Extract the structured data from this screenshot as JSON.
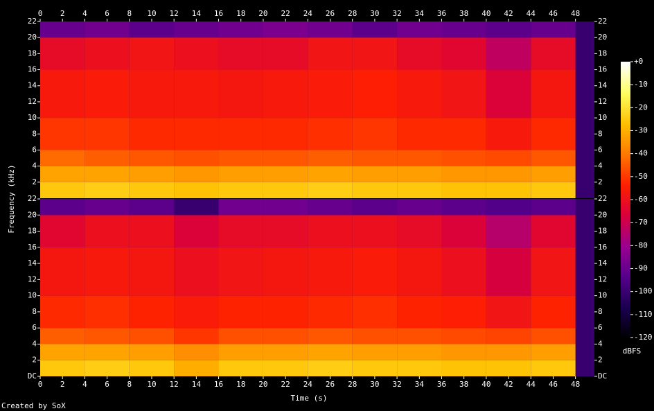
{
  "chart_data": {
    "type": "spectrogram",
    "xlabel": "Time (s)",
    "ylabel": "Frequency (kHz)",
    "footer": "Created by SoX",
    "colorbar_label": "dBFS",
    "xlim": [
      0,
      49.7
    ],
    "xticks": [
      0,
      2,
      4,
      6,
      8,
      10,
      12,
      14,
      16,
      18,
      20,
      22,
      24,
      26,
      28,
      30,
      32,
      34,
      36,
      38,
      40,
      42,
      44,
      46,
      48
    ],
    "zlim": [
      -120,
      0
    ],
    "zticks": [
      {
        "value": 0,
        "label": "+0"
      },
      -10,
      -20,
      -30,
      -40,
      -50,
      -60,
      -70,
      -80,
      -90,
      -100,
      -110,
      -120
    ],
    "colorscale": [
      "#000000",
      "#1a0050",
      "#55008c",
      "#9a0090",
      "#d8003c",
      "#ff2000",
      "#ff7800",
      "#ffc000",
      "#ffff60",
      "#ffffff"
    ],
    "time_bins": [
      0,
      4,
      8,
      12,
      16,
      20,
      24,
      28,
      32,
      36,
      40,
      44,
      48
    ],
    "freq_bins": [
      0,
      2,
      4,
      6,
      10,
      16,
      20,
      22
    ],
    "channels": [
      {
        "ylim": [
          0,
          22
        ],
        "yticks": [
          2,
          4,
          6,
          8,
          10,
          12,
          14,
          16,
          18,
          20,
          22
        ],
        "z": [
          [
            -25,
            -24,
            -25,
            -26,
            -25,
            -25,
            -24,
            -25,
            -25,
            -26,
            -26,
            -25
          ],
          [
            -32,
            -32,
            -33,
            -34,
            -33,
            -33,
            -32,
            -33,
            -33,
            -34,
            -34,
            -33
          ],
          [
            -42,
            -44,
            -45,
            -46,
            -45,
            -45,
            -44,
            -45,
            -45,
            -46,
            -47,
            -45
          ],
          [
            -50,
            -50,
            -52,
            -52,
            -52,
            -52,
            -51,
            -50,
            -52,
            -52,
            -56,
            -52
          ],
          [
            -56,
            -55,
            -56,
            -56,
            -57,
            -56,
            -55,
            -54,
            -56,
            -58,
            -66,
            -57
          ],
          [
            -62,
            -60,
            -58,
            -60,
            -62,
            -62,
            -58,
            -58,
            -62,
            -64,
            -72,
            -62
          ],
          [
            -90,
            -88,
            -92,
            -90,
            -88,
            -86,
            -88,
            -92,
            -88,
            -90,
            -92,
            -90
          ]
        ]
      },
      {
        "ylim": [
          0,
          22
        ],
        "yticks": [
          {
            "value": 0,
            "label": "DC"
          },
          2,
          4,
          6,
          8,
          10,
          12,
          14,
          16,
          18,
          20,
          22
        ],
        "z": [
          [
            -25,
            -24,
            -25,
            -30,
            -25,
            -25,
            -24,
            -25,
            -25,
            -26,
            -26,
            -25
          ],
          [
            -32,
            -32,
            -33,
            -36,
            -33,
            -33,
            -32,
            -33,
            -33,
            -34,
            -34,
            -33
          ],
          [
            -44,
            -45,
            -46,
            -50,
            -46,
            -46,
            -45,
            -46,
            -46,
            -47,
            -48,
            -46
          ],
          [
            -52,
            -51,
            -53,
            -55,
            -53,
            -53,
            -52,
            -51,
            -53,
            -54,
            -58,
            -53
          ],
          [
            -57,
            -56,
            -57,
            -60,
            -58,
            -57,
            -56,
            -55,
            -57,
            -60,
            -67,
            -58
          ],
          [
            -64,
            -60,
            -60,
            -66,
            -62,
            -62,
            -60,
            -60,
            -62,
            -66,
            -74,
            -64
          ],
          [
            -92,
            -90,
            -92,
            -100,
            -88,
            -88,
            -90,
            -92,
            -90,
            -92,
            -94,
            -92
          ]
        ]
      }
    ]
  }
}
